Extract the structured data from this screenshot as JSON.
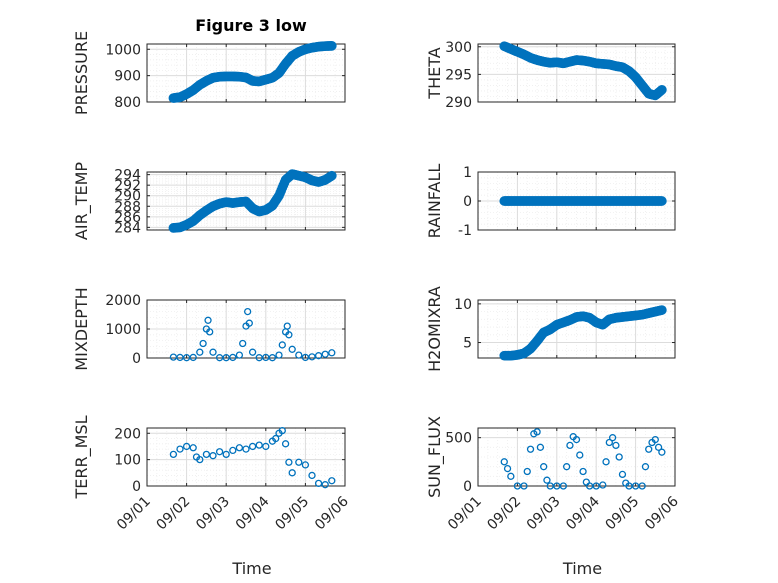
{
  "figure_title": "Figure 3 low",
  "colors": {
    "marker": "#0072BD",
    "axis": "#262626",
    "grid": "#dcdcdc",
    "minor_grid": "#eeeeee"
  },
  "x_ticks": [
    "09/01",
    "09/02",
    "09/03",
    "09/04",
    "09/05",
    "09/06"
  ],
  "xlabel": "Time",
  "chart_data": [
    {
      "type": "scatter",
      "ylabel": "PRESSURE",
      "title": "Figure 3 low",
      "ylim": [
        800,
        1020
      ],
      "yticks": [
        800,
        900,
        1000
      ],
      "xlim": [
        "09/01",
        "09/06"
      ],
      "grid": true,
      "marker_size": "large",
      "x": [
        "09/01 16:00",
        "09/01 20:00",
        "09/02 00:00",
        "09/02 04:00",
        "09/02 08:00",
        "09/02 12:00",
        "09/02 16:00",
        "09/02 20:00",
        "09/03 00:00",
        "09/03 04:00",
        "09/03 08:00",
        "09/03 12:00",
        "09/03 16:00",
        "09/03 20:00",
        "09/04 00:00",
        "09/04 04:00",
        "09/04 08:00",
        "09/04 12:00",
        "09/04 16:00",
        "09/04 20:00",
        "09/05 00:00",
        "09/05 04:00",
        "09/05 08:00",
        "09/05 12:00",
        "09/05 16:00"
      ],
      "y": [
        815,
        818,
        830,
        845,
        865,
        880,
        892,
        896,
        897,
        897,
        896,
        893,
        880,
        878,
        885,
        892,
        910,
        945,
        975,
        990,
        1000,
        1006,
        1010,
        1012,
        1013
      ]
    },
    {
      "type": "scatter",
      "ylabel": "THETA",
      "ylim": [
        290,
        300.5
      ],
      "yticks": [
        290,
        295,
        300
      ],
      "xlim": [
        "09/01",
        "09/06"
      ],
      "grid": true,
      "marker_size": "large",
      "x": [
        "09/01 16:00",
        "09/01 20:00",
        "09/02 00:00",
        "09/02 04:00",
        "09/02 08:00",
        "09/02 12:00",
        "09/02 16:00",
        "09/02 20:00",
        "09/03 00:00",
        "09/03 04:00",
        "09/03 08:00",
        "09/03 12:00",
        "09/03 16:00",
        "09/03 20:00",
        "09/04 00:00",
        "09/04 04:00",
        "09/04 08:00",
        "09/04 12:00",
        "09/04 16:00",
        "09/04 20:00",
        "09/05 00:00",
        "09/05 04:00",
        "09/05 08:00",
        "09/05 12:00",
        "09/05 16:00"
      ],
      "y": [
        300.1,
        299.6,
        299.1,
        298.6,
        298.0,
        297.6,
        297.3,
        297.1,
        297.2,
        297.0,
        297.3,
        297.6,
        297.5,
        297.3,
        297.0,
        296.9,
        296.8,
        296.5,
        296.3,
        295.6,
        294.5,
        293.0,
        291.5,
        291.2,
        292.2
      ]
    },
    {
      "type": "scatter",
      "ylabel": "AIR_TEMP",
      "ylim": [
        283.5,
        294.5
      ],
      "yticks": [
        284,
        286,
        288,
        290,
        292,
        294
      ],
      "xlim": [
        "09/01",
        "09/06"
      ],
      "grid": true,
      "marker_size": "large",
      "x": [
        "09/01 16:00",
        "09/01 20:00",
        "09/02 00:00",
        "09/02 04:00",
        "09/02 08:00",
        "09/02 12:00",
        "09/02 16:00",
        "09/02 20:00",
        "09/03 00:00",
        "09/03 04:00",
        "09/03 08:00",
        "09/03 12:00",
        "09/03 16:00",
        "09/03 20:00",
        "09/04 00:00",
        "09/04 04:00",
        "09/04 08:00",
        "09/04 12:00",
        "09/04 16:00",
        "09/04 20:00",
        "09/05 00:00",
        "09/05 04:00",
        "09/05 08:00",
        "09/05 12:00",
        "09/05 16:00"
      ],
      "y": [
        283.9,
        284.0,
        284.5,
        285.2,
        286.3,
        287.2,
        288.0,
        288.5,
        288.8,
        288.6,
        288.8,
        288.9,
        287.6,
        287.0,
        287.3,
        288.1,
        290.0,
        293.0,
        294.1,
        293.8,
        293.5,
        292.9,
        292.6,
        293.0,
        293.8
      ]
    },
    {
      "type": "scatter",
      "ylabel": "RAINFALL",
      "ylim": [
        -1,
        1
      ],
      "yticks": [
        -1,
        0,
        1
      ],
      "xlim": [
        "09/01",
        "09/06"
      ],
      "grid": true,
      "marker_size": "large",
      "x": [
        "09/01 16:00",
        "09/01 20:00",
        "09/02 00:00",
        "09/02 04:00",
        "09/02 08:00",
        "09/02 12:00",
        "09/02 16:00",
        "09/02 20:00",
        "09/03 00:00",
        "09/03 04:00",
        "09/03 08:00",
        "09/03 12:00",
        "09/03 16:00",
        "09/03 20:00",
        "09/04 00:00",
        "09/04 04:00",
        "09/04 08:00",
        "09/04 12:00",
        "09/04 16:00",
        "09/04 20:00",
        "09/05 00:00",
        "09/05 04:00",
        "09/05 08:00",
        "09/05 12:00",
        "09/05 16:00"
      ],
      "y": [
        0,
        0,
        0,
        0,
        0,
        0,
        0,
        0,
        0,
        0,
        0,
        0,
        0,
        0,
        0,
        0,
        0,
        0,
        0,
        0,
        0,
        0,
        0,
        0,
        0
      ]
    },
    {
      "type": "scatter",
      "ylabel": "MIXDEPTH",
      "ylim": [
        0,
        2000
      ],
      "yticks": [
        0,
        1000,
        2000
      ],
      "xlim": [
        "09/01",
        "09/06"
      ],
      "grid": true,
      "marker_size": "small",
      "x": [
        "09/01 16:00",
        "09/01 20:00",
        "09/02 00:00",
        "09/02 04:00",
        "09/02 08:00",
        "09/02 10:00",
        "09/02 12:00",
        "09/02 13:00",
        "09/02 14:00",
        "09/02 16:00",
        "09/02 20:00",
        "09/03 00:00",
        "09/03 04:00",
        "09/03 08:00",
        "09/03 10:00",
        "09/03 12:00",
        "09/03 13:00",
        "09/03 14:00",
        "09/03 16:00",
        "09/03 20:00",
        "09/04 00:00",
        "09/04 04:00",
        "09/04 08:00",
        "09/04 10:00",
        "09/04 12:00",
        "09/04 13:00",
        "09/04 14:00",
        "09/04 16:00",
        "09/04 20:00",
        "09/05 00:00",
        "09/05 04:00",
        "09/05 08:00",
        "09/05 12:00",
        "09/05 16:00"
      ],
      "y": [
        30,
        20,
        10,
        20,
        200,
        500,
        1000,
        1300,
        900,
        200,
        10,
        10,
        20,
        100,
        500,
        1100,
        1600,
        1200,
        200,
        10,
        20,
        10,
        100,
        450,
        900,
        1100,
        800,
        300,
        100,
        20,
        40,
        80,
        130,
        180
      ]
    },
    {
      "type": "scatter",
      "ylabel": "H2OMIXRA",
      "ylim": [
        3,
        10.5
      ],
      "yticks": [
        5,
        10
      ],
      "xlim": [
        "09/01",
        "09/06"
      ],
      "grid": true,
      "marker_size": "large",
      "x": [
        "09/01 16:00",
        "09/01 20:00",
        "09/02 00:00",
        "09/02 04:00",
        "09/02 08:00",
        "09/02 12:00",
        "09/02 16:00",
        "09/02 20:00",
        "09/03 00:00",
        "09/03 04:00",
        "09/03 08:00",
        "09/03 12:00",
        "09/03 16:00",
        "09/03 20:00",
        "09/04 00:00",
        "09/04 04:00",
        "09/04 08:00",
        "09/04 12:00",
        "09/04 16:00",
        "09/04 20:00",
        "09/05 00:00",
        "09/05 04:00",
        "09/05 08:00",
        "09/05 12:00",
        "09/05 16:00"
      ],
      "y": [
        3.3,
        3.3,
        3.4,
        3.6,
        4.2,
        5.2,
        6.3,
        6.7,
        7.3,
        7.6,
        7.9,
        8.3,
        8.4,
        8.2,
        7.6,
        7.3,
        8.0,
        8.2,
        8.3,
        8.4,
        8.5,
        8.6,
        8.8,
        9.0,
        9.2
      ]
    },
    {
      "type": "scatter",
      "ylabel": "TERR_MSL",
      "ylim": [
        0,
        220
      ],
      "yticks": [
        0,
        100,
        200
      ],
      "xlim": [
        "09/01",
        "09/06"
      ],
      "grid": true,
      "marker_size": "small",
      "x": [
        "09/01 16:00",
        "09/01 20:00",
        "09/02 00:00",
        "09/02 04:00",
        "09/02 06:00",
        "09/02 08:00",
        "09/02 12:00",
        "09/02 16:00",
        "09/02 20:00",
        "09/03 00:00",
        "09/03 04:00",
        "09/03 08:00",
        "09/03 12:00",
        "09/03 16:00",
        "09/03 20:00",
        "09/04 00:00",
        "09/04 04:00",
        "09/04 06:00",
        "09/04 08:00",
        "09/04 10:00",
        "09/04 12:00",
        "09/04 14:00",
        "09/04 16:00",
        "09/04 20:00",
        "09/05 00:00",
        "09/05 04:00",
        "09/05 08:00",
        "09/05 12:00",
        "09/05 16:00"
      ],
      "y": [
        120,
        140,
        150,
        145,
        110,
        100,
        120,
        115,
        130,
        120,
        135,
        145,
        140,
        150,
        155,
        150,
        170,
        180,
        200,
        210,
        160,
        90,
        50,
        90,
        80,
        40,
        10,
        5,
        20
      ]
    },
    {
      "type": "scatter",
      "ylabel": "SUN_FLUX",
      "ylim": [
        0,
        600
      ],
      "yticks": [
        0,
        500
      ],
      "xlim": [
        "09/01",
        "09/06"
      ],
      "grid": true,
      "marker_size": "small",
      "x": [
        "09/01 16:00",
        "09/01 18:00",
        "09/01 20:00",
        "09/02 00:00",
        "09/02 04:00",
        "09/02 06:00",
        "09/02 08:00",
        "09/02 10:00",
        "09/02 12:00",
        "09/02 14:00",
        "09/02 16:00",
        "09/02 18:00",
        "09/02 20:00",
        "09/03 00:00",
        "09/03 04:00",
        "09/03 06:00",
        "09/03 08:00",
        "09/03 10:00",
        "09/03 12:00",
        "09/03 14:00",
        "09/03 16:00",
        "09/03 18:00",
        "09/03 20:00",
        "09/04 00:00",
        "09/04 04:00",
        "09/04 06:00",
        "09/04 08:00",
        "09/04 10:00",
        "09/04 12:00",
        "09/04 14:00",
        "09/04 16:00",
        "09/04 18:00",
        "09/04 20:00",
        "09/05 00:00",
        "09/05 04:00",
        "09/05 06:00",
        "09/05 08:00",
        "09/05 10:00",
        "09/05 12:00",
        "09/05 14:00",
        "09/05 16:00"
      ],
      "y": [
        250,
        180,
        100,
        0,
        0,
        150,
        380,
        540,
        560,
        400,
        200,
        60,
        0,
        0,
        0,
        200,
        420,
        510,
        480,
        320,
        150,
        40,
        0,
        0,
        10,
        250,
        450,
        500,
        420,
        300,
        120,
        30,
        0,
        0,
        0,
        200,
        380,
        450,
        480,
        400,
        350
      ]
    }
  ]
}
